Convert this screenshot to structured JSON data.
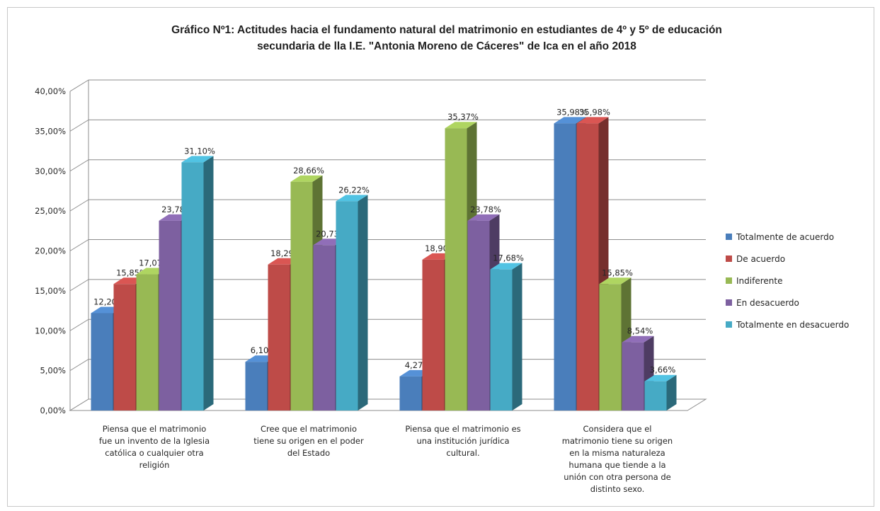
{
  "chart_data": {
    "type": "bar",
    "title": [
      "Gráfico Nº1: Actitudes hacia el fundamento natural del matrimonio en estudiantes de 4º y 5º de educación",
      "secundaria de lla I.E. \"Antonia Moreno de Cáceres\" de Ica en el año 2018"
    ],
    "xlabel": "",
    "ylabel": "",
    "ylim": [
      0,
      40
    ],
    "y_ticks": [
      "0,00%",
      "5,00%",
      "10,00%",
      "15,00%",
      "20,00%",
      "25,00%",
      "30,00%",
      "35,00%",
      "40,00%"
    ],
    "grid": true,
    "legend_position": "right",
    "categories": [
      [
        "Piensa que el matrimonio",
        "fue un invento de la Iglesia",
        "católica o cualquier otra",
        "religión"
      ],
      [
        "Cree que el matrimonio",
        "tiene su origen en el poder",
        "del Estado"
      ],
      [
        "Piensa que el matrimonio es",
        "una institución jurídica",
        "cultural."
      ],
      [
        "Considera que el",
        "matrimonio tiene su origen",
        "en la misma naturaleza",
        "humana que tiende a la",
        "unión con otra persona de",
        "distinto sexo."
      ]
    ],
    "series": [
      {
        "name": "Totalmente de acuerdo",
        "color": "#4a7ebb",
        "values": [
          12.2,
          6.1,
          4.27,
          35.98
        ],
        "labels": [
          "12,20%",
          "6,10%",
          "4,27%",
          "35,98%"
        ]
      },
      {
        "name": "De acuerdo",
        "color": "#be4b48",
        "values": [
          15.85,
          18.29,
          18.9,
          35.98
        ],
        "labels": [
          "15,85%",
          "18,29%",
          "18,90%",
          "35,98%"
        ]
      },
      {
        "name": "Indiferente",
        "color": "#98b954",
        "values": [
          17.07,
          28.66,
          35.37,
          15.85
        ],
        "labels": [
          "17,07%",
          "28,66%",
          "35,37%",
          "15,85%"
        ]
      },
      {
        "name": "En desacuerdo",
        "color": "#7d60a0",
        "values": [
          23.78,
          20.73,
          23.78,
          8.54
        ],
        "labels": [
          "23,78%",
          "20,73%",
          "23,78%",
          "8,54%"
        ]
      },
      {
        "name": "Totalmente en desacuerdo",
        "color": "#46aac5",
        "values": [
          31.1,
          26.22,
          17.68,
          3.66
        ],
        "labels": [
          "31,10%",
          "26,22%",
          "17,68%",
          "3,66%"
        ]
      }
    ]
  }
}
